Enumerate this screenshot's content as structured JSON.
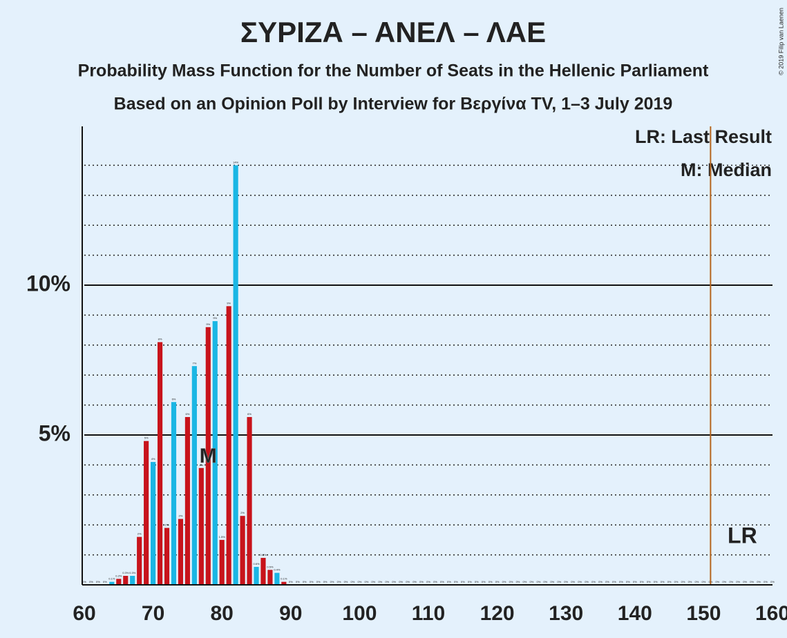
{
  "chart_data": {
    "type": "bar",
    "title": "ΣΥΡΙΖΑ – ΑΝΕΛ – ΛΑΕ",
    "subtitle": "Probability Mass Function for the Number of Seats in the Hellenic Parliament",
    "subtitle2": "Based on an Opinion Poll by Interview for Βεργίνα TV, 1–3 July 2019",
    "copyright": "© 2019 Filip van Laenen",
    "legend_lr": "LR: Last Result",
    "legend_median": "M: Median",
    "median": 78,
    "median_marker": "M",
    "last_result": 151,
    "lr_marker": "LR",
    "lr_color": "#b5651d",
    "color_cycle": [
      "#c8131b",
      "#1ab6e4",
      "#c8131b"
    ],
    "x": [
      60,
      61,
      62,
      63,
      64,
      65,
      66,
      67,
      68,
      69,
      70,
      71,
      72,
      73,
      74,
      75,
      76,
      77,
      78,
      79,
      80,
      81,
      82,
      83,
      84,
      85,
      86,
      87,
      88,
      89,
      90,
      91,
      92,
      93,
      94,
      95,
      96,
      97,
      98,
      99,
      100,
      101,
      102,
      103,
      104,
      105,
      106,
      107,
      108,
      109,
      110,
      111,
      112,
      113,
      114,
      115,
      116,
      117,
      118,
      119,
      120,
      121,
      122,
      123,
      124,
      125,
      126,
      127,
      128,
      129,
      130,
      131,
      132,
      133,
      134,
      135,
      136,
      137,
      138,
      139,
      140,
      141,
      142,
      143,
      144,
      145,
      146,
      147,
      148,
      149,
      150,
      151,
      152,
      153,
      154,
      155,
      156,
      157,
      158,
      159,
      160
    ],
    "values": [
      0,
      0,
      0,
      0,
      0.1,
      0.2,
      0.3,
      0.3,
      1.6,
      4.8,
      4.1,
      8.1,
      1.9,
      6.1,
      2.2,
      5.6,
      7.3,
      3.9,
      8.6,
      8.8,
      1.5,
      9.3,
      14.0,
      2.3,
      5.6,
      0.6,
      0.9,
      0.5,
      0.4,
      0.1,
      0,
      0,
      0,
      0,
      0,
      0,
      0,
      0,
      0,
      0,
      0,
      0,
      0,
      0,
      0,
      0,
      0,
      0,
      0,
      0,
      0,
      0,
      0,
      0,
      0,
      0,
      0,
      0,
      0,
      0,
      0,
      0,
      0,
      0,
      0,
      0,
      0,
      0,
      0,
      0,
      0,
      0,
      0,
      0,
      0,
      0,
      0,
      0,
      0,
      0,
      0,
      0,
      0,
      0,
      0,
      0,
      0,
      0,
      0,
      0,
      0,
      0,
      0,
      0,
      0,
      0,
      0,
      0,
      0,
      0,
      0
    ],
    "value_labels": [
      "0%",
      "0%",
      "0%",
      "0%",
      "0.1%",
      "0.2%",
      "0.3%",
      "0.3%",
      "2%",
      "5%",
      "4%",
      "8%",
      "2%",
      "6%",
      "2%",
      "6%",
      "7%",
      "4%",
      "9%",
      "9%",
      "1.5%",
      "9%",
      "14%",
      "2%",
      "6%",
      "0.6%",
      "0.9%",
      "0.5%",
      "0.4%",
      "0.1%",
      "0%",
      "0%",
      "0%",
      "0%",
      "0%",
      "0%",
      "0%",
      "0%",
      "0%",
      "0%",
      "0%",
      "0%",
      "0%",
      "0%",
      "0%",
      "0%",
      "0%",
      "0%",
      "0%",
      "0%",
      "0%",
      "0%",
      "0%",
      "0%",
      "0%",
      "0%",
      "0%",
      "0%",
      "0%",
      "0%",
      "0%",
      "0%",
      "0%",
      "0%",
      "0%",
      "0%",
      "0%",
      "0%",
      "0%",
      "0%",
      "0%",
      "0%",
      "0%",
      "0%",
      "0%",
      "0%",
      "0%",
      "0%",
      "0%",
      "0%",
      "0%",
      "0%",
      "0%",
      "0%",
      "0%",
      "0%",
      "0%",
      "0%",
      "0%",
      "0%",
      "0%",
      "0%",
      "0%",
      "0%",
      "0%",
      "0%",
      "0%",
      "0%",
      "0%",
      "0%",
      "0%"
    ],
    "xlim": [
      60,
      160
    ],
    "xticks": [
      60,
      70,
      80,
      90,
      100,
      110,
      120,
      130,
      140,
      150,
      160
    ],
    "ylim": [
      0,
      15.3
    ],
    "yticks": [
      {
        "value": 5,
        "label": "5%"
      },
      {
        "value": 10,
        "label": "10%"
      }
    ],
    "minor_yticks": [
      1,
      2,
      3,
      4,
      6,
      7,
      8,
      9,
      11,
      12,
      13,
      14
    ]
  }
}
